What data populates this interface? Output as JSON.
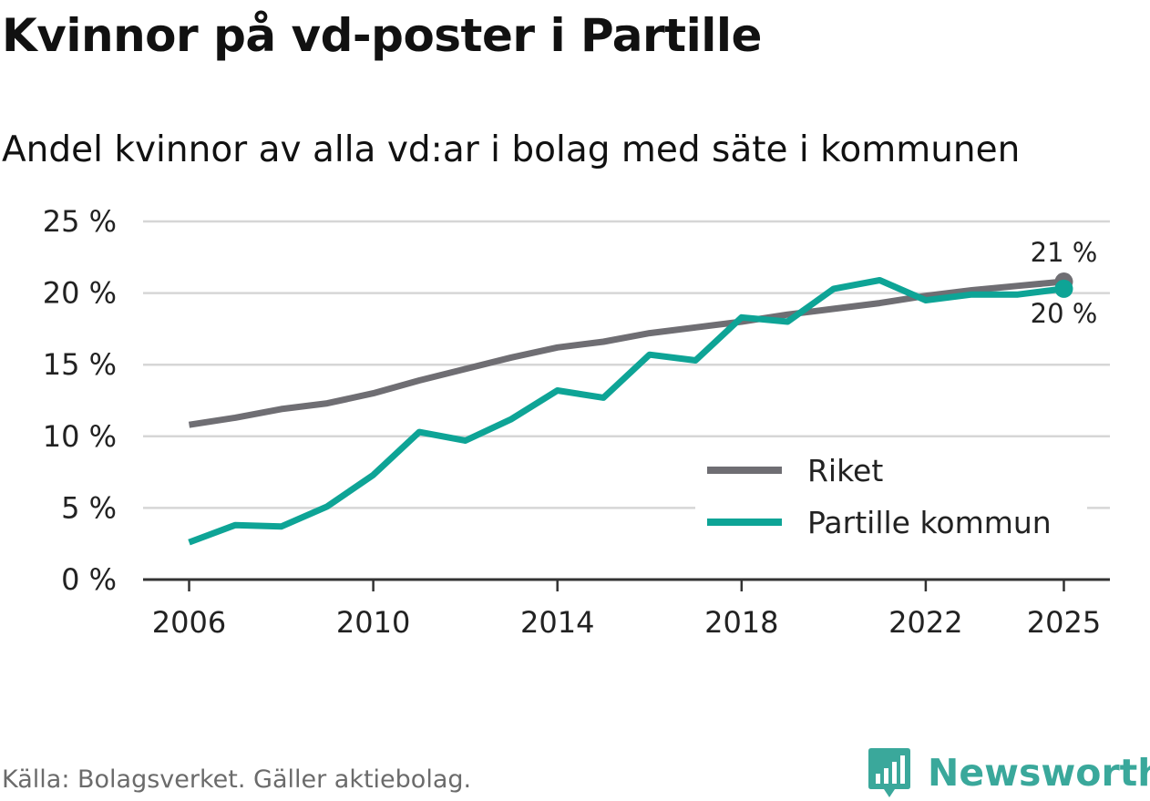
{
  "title": "Kvinnor på vd-poster i Partille",
  "subtitle": "Andel kvinnor av alla vd:ar i bolag med säte i kommunen",
  "source": "Källa: Bolagsverket. Gäller aktiebolag.",
  "brand": "Newsworthy",
  "colors": {
    "riket": "#6f6e73",
    "partille": "#0ea496",
    "grid": "#d6d6d6",
    "axis": "#333333",
    "brand": "#3aa89b"
  },
  "chart_data": {
    "type": "line",
    "title": "Kvinnor på vd-poster i Partille",
    "subtitle": "Andel kvinnor av alla vd:ar i bolag med säte i kommunen",
    "xlabel": "",
    "ylabel": "",
    "xlim": [
      2005,
      2026
    ],
    "ylim": [
      0,
      25
    ],
    "grid": true,
    "legend_position": "bottom-right",
    "x_ticks": [
      2006,
      2010,
      2014,
      2018,
      2022,
      2025
    ],
    "x_tick_labels": [
      "2006",
      "2010",
      "2014",
      "2018",
      "2022",
      "2025"
    ],
    "y_ticks": [
      0,
      5,
      10,
      15,
      20,
      25
    ],
    "y_tick_labels": [
      "0 %",
      "5 %",
      "10 %",
      "15 %",
      "20 %",
      "25 %"
    ],
    "x": [
      2006,
      2007,
      2008,
      2009,
      2010,
      2011,
      2012,
      2013,
      2014,
      2015,
      2016,
      2017,
      2018,
      2019,
      2020,
      2021,
      2022,
      2023,
      2024,
      2025
    ],
    "series": [
      {
        "name": "Riket",
        "color": "#6f6e73",
        "values": [
          10.8,
          11.3,
          11.9,
          12.3,
          13.0,
          13.9,
          14.7,
          15.5,
          16.2,
          16.6,
          17.2,
          17.6,
          18.0,
          18.5,
          18.9,
          19.3,
          19.8,
          20.2,
          20.5,
          20.8
        ],
        "end_label": "21 %"
      },
      {
        "name": "Partille kommun",
        "color": "#0ea496",
        "values": [
          2.6,
          3.8,
          3.7,
          5.1,
          7.3,
          10.3,
          9.7,
          11.2,
          13.2,
          12.7,
          15.7,
          15.3,
          18.3,
          18.0,
          20.3,
          20.9,
          19.5,
          19.9,
          19.9,
          20.3
        ],
        "end_label": "20 %"
      }
    ]
  }
}
